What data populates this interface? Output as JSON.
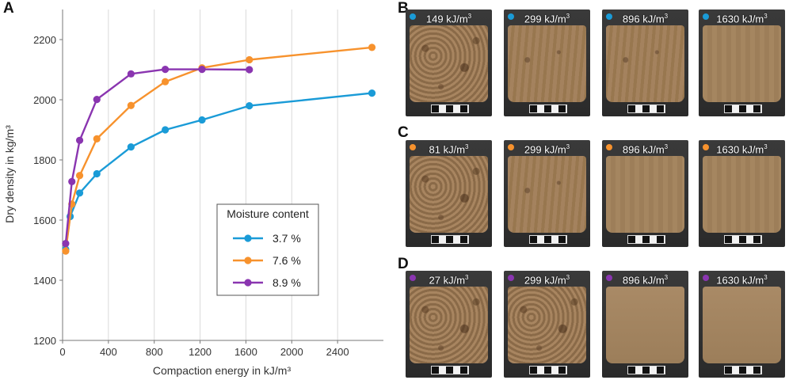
{
  "panels": {
    "a": "A",
    "b": "B",
    "c": "C",
    "d": "D"
  },
  "chart_data": {
    "type": "line",
    "xlabel": "Compaction energy in kJ/m³",
    "ylabel": "Dry density in kg/m³",
    "xlim": [
      0,
      2800
    ],
    "ylim": [
      1200,
      2300
    ],
    "xticks": [
      0,
      400,
      800,
      1200,
      1600,
      2000,
      2400
    ],
    "yticks": [
      1200,
      1400,
      1600,
      1800,
      2000,
      2200
    ],
    "grid": "vertical",
    "legend_title": "Moisture content",
    "legend_position": "lower-right",
    "series": [
      {
        "name": "3.7 %",
        "color": "#1a9bd7",
        "points": [
          [
            27,
            1503
          ],
          [
            66,
            1612
          ],
          [
            149,
            1690
          ],
          [
            299,
            1754
          ],
          [
            597,
            1843
          ],
          [
            896,
            1900
          ],
          [
            1217,
            1933
          ],
          [
            1630,
            1980
          ],
          [
            2700,
            2022
          ]
        ]
      },
      {
        "name": "7.6 %",
        "color": "#f7922d",
        "points": [
          [
            27,
            1497
          ],
          [
            81,
            1653
          ],
          [
            149,
            1748
          ],
          [
            299,
            1870
          ],
          [
            597,
            1981
          ],
          [
            896,
            2060
          ],
          [
            1217,
            2106
          ],
          [
            1630,
            2133
          ],
          [
            2700,
            2174
          ]
        ]
      },
      {
        "name": "8.9 %",
        "color": "#8a35b0",
        "points": [
          [
            27,
            1522
          ],
          [
            81,
            1728
          ],
          [
            149,
            1865
          ],
          [
            299,
            2001
          ],
          [
            597,
            2086
          ],
          [
            896,
            2101
          ],
          [
            1217,
            2101
          ],
          [
            1630,
            2100
          ]
        ]
      }
    ]
  },
  "photos": {
    "row_b": {
      "color": "#1a9bd7",
      "labels": [
        "149",
        "299",
        "896",
        "1630"
      ]
    },
    "row_c": {
      "color": "#f7922d",
      "labels": [
        "81",
        "299",
        "896",
        "1630"
      ]
    },
    "row_d": {
      "color": "#8a35b0",
      "labels": [
        "27",
        "299",
        "896",
        "1630"
      ]
    },
    "unit": "kJ/m",
    "unit_exp": "3"
  }
}
